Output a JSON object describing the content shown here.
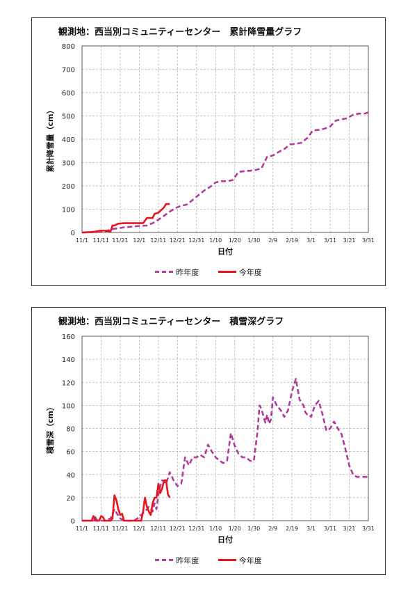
{
  "colors": {
    "last_year": "#b13a9c",
    "this_year": "#e8141b",
    "grid": "#b5b5b5",
    "axis": "#555555"
  },
  "x_ticks": [
    "11/1",
    "11/11",
    "11/21",
    "12/1",
    "12/11",
    "12/21",
    "12/31",
    "1/10",
    "1/20",
    "1/30",
    "2/9",
    "2/19",
    "3/1",
    "3/11",
    "3/21",
    "3/31"
  ],
  "chart_data": [
    {
      "type": "line",
      "title": "観測地：西当別コミュニティーセンター　累計降雪量グラフ",
      "xlabel": "日付",
      "ylabel": "累計降雪量（cm）",
      "ylim": [
        0,
        800
      ],
      "yticks": [
        0,
        100,
        200,
        300,
        400,
        500,
        600,
        700,
        800
      ],
      "xlim_days": [
        0,
        150
      ],
      "legend": [
        "昨年度",
        "今年度"
      ],
      "series": [
        {
          "name": "昨年度",
          "style": "dashed",
          "x": [
            0,
            8,
            12,
            14,
            16,
            19,
            22,
            26,
            30,
            34,
            37,
            40,
            43,
            46,
            49,
            52,
            55,
            58,
            61,
            64,
            67,
            70,
            73,
            76,
            79,
            82,
            85,
            88,
            91,
            94,
            97,
            100,
            103,
            106,
            109,
            112,
            115,
            118,
            121,
            124,
            127,
            130,
            133,
            136,
            139,
            142,
            145,
            148,
            150
          ],
          "y": [
            0,
            2,
            5,
            10,
            15,
            18,
            22,
            25,
            28,
            30,
            40,
            55,
            72,
            90,
            105,
            115,
            120,
            140,
            160,
            180,
            195,
            215,
            220,
            220,
            225,
            260,
            263,
            265,
            268,
            275,
            325,
            330,
            345,
            358,
            378,
            380,
            385,
            405,
            438,
            440,
            445,
            455,
            480,
            485,
            490,
            505,
            510,
            510,
            515
          ]
        },
        {
          "name": "今年度",
          "style": "solid",
          "x": [
            0,
            5,
            7,
            10,
            12,
            15,
            16,
            17,
            19,
            22,
            25,
            27,
            30,
            32,
            34,
            35,
            37,
            38,
            40,
            42,
            43,
            44,
            46
          ],
          "y": [
            0,
            2,
            4,
            8,
            8,
            5,
            30,
            30,
            38,
            40,
            40,
            40,
            40,
            40,
            62,
            62,
            62,
            80,
            85,
            100,
            108,
            122,
            122
          ]
        }
      ]
    },
    {
      "type": "line",
      "title": "観測地：西当別コミュニティーセンター　積雪深グラフ",
      "xlabel": "日付",
      "ylabel": "積雪深（cm）",
      "ylim": [
        0,
        160
      ],
      "yticks": [
        0,
        20,
        40,
        60,
        80,
        100,
        120,
        140,
        160
      ],
      "xlim_days": [
        0,
        150
      ],
      "legend": [
        "昨年度",
        "今年度"
      ],
      "series": [
        {
          "name": "昨年度",
          "style": "dashed",
          "x": [
            0,
            6,
            7,
            8,
            10,
            12,
            15,
            17,
            18,
            20,
            22,
            24,
            27,
            29,
            31,
            33,
            35,
            37,
            38,
            39,
            40,
            41,
            42,
            44,
            46,
            48,
            50,
            52,
            54,
            56,
            58,
            60,
            62,
            64,
            66,
            68,
            70,
            72,
            74,
            76,
            78,
            80,
            82,
            84,
            86,
            88,
            90,
            92,
            93,
            94,
            96,
            97,
            98,
            99,
            100,
            102,
            104,
            106,
            108,
            110,
            112,
            114,
            116,
            117,
            118,
            119,
            120,
            122,
            124,
            126,
            128,
            130,
            132,
            134,
            136,
            138,
            140,
            142,
            144,
            146,
            148,
            150
          ],
          "y": [
            0,
            0,
            3,
            0,
            0,
            0,
            2,
            10,
            7,
            2,
            0,
            0,
            0,
            2,
            5,
            8,
            12,
            8,
            15,
            10,
            22,
            30,
            35,
            32,
            42,
            35,
            30,
            32,
            55,
            48,
            55,
            55,
            57,
            55,
            66,
            60,
            55,
            52,
            50,
            52,
            76,
            65,
            58,
            55,
            55,
            52,
            52,
            78,
            100,
            97,
            85,
            92,
            84,
            88,
            107,
            100,
            96,
            90,
            96,
            112,
            123,
            105,
            100,
            94,
            92,
            92,
            90,
            100,
            104,
            92,
            78,
            80,
            86,
            80,
            75,
            62,
            48,
            40,
            38,
            38,
            38,
            38
          ]
        },
        {
          "name": "今年度",
          "style": "solid",
          "x": [
            0,
            3,
            5,
            6,
            7,
            9,
            10,
            11,
            12,
            13,
            14,
            15,
            16,
            17,
            18,
            19,
            20,
            21,
            22,
            24,
            26,
            28,
            30,
            31,
            32,
            33,
            34,
            35,
            36,
            37,
            38,
            39,
            40,
            41,
            42,
            43,
            44,
            45,
            46
          ],
          "y": [
            0,
            0,
            0,
            4,
            0,
            0,
            4,
            3,
            0,
            0,
            0,
            0,
            2,
            22,
            18,
            10,
            5,
            6,
            0,
            0,
            0,
            0,
            0,
            0,
            8,
            20,
            12,
            8,
            5,
            15,
            20,
            20,
            32,
            24,
            28,
            35,
            35,
            23,
            20
          ]
        }
      ]
    }
  ]
}
